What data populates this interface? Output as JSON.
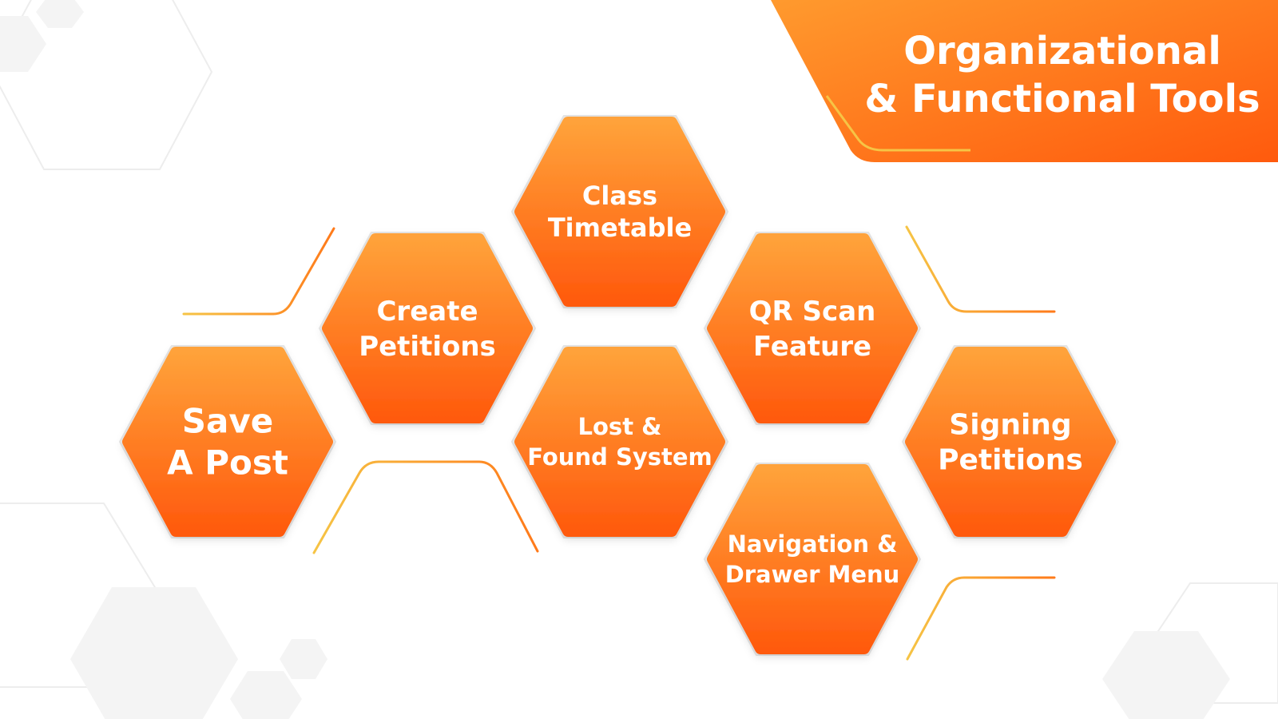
{
  "title": {
    "line1": "Organizational",
    "line2": "& Functional Tools"
  },
  "colors": {
    "accent_light": "#FFA23A",
    "accent_dark": "#FF5A0D",
    "line_gold": "#F2B33A",
    "bg_hex_stroke": "#EDEDED",
    "bg_hex_fill": "#F4F4F4"
  },
  "tools": [
    {
      "id": "save-a-post",
      "lines": [
        "Save",
        "A Post"
      ]
    },
    {
      "id": "create-petitions",
      "lines": [
        "Create",
        "Petitions"
      ]
    },
    {
      "id": "class-timetable",
      "lines": [
        "Class",
        "Timetable"
      ]
    },
    {
      "id": "lost-and-found-system",
      "lines": [
        "Lost &",
        "Found System"
      ]
    },
    {
      "id": "qr-scan-feature",
      "lines": [
        "QR Scan",
        "Feature"
      ]
    },
    {
      "id": "navigation-and-drawer-menu",
      "lines": [
        "Navigation &",
        "Drawer Menu"
      ]
    },
    {
      "id": "signing-petitions",
      "lines": [
        "Signing",
        "Petitions"
      ]
    }
  ]
}
